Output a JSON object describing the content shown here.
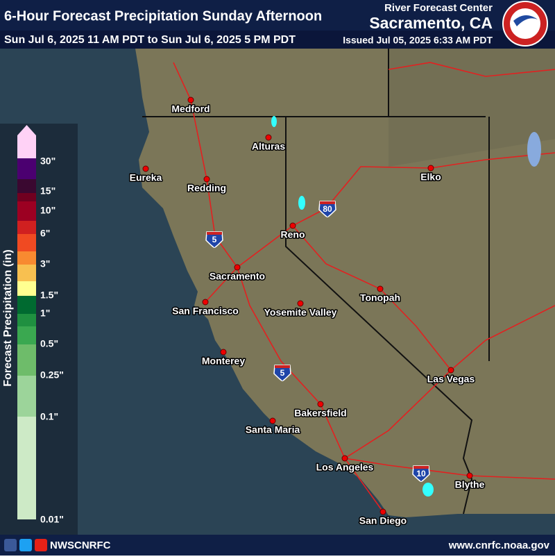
{
  "header": {
    "title": "6-Hour Forecast Precipitation Sunday Afternoon",
    "subtitle": "Sun Jul 6, 2025 11 AM PDT to Sun Jul 6, 2025 5 PM PDT",
    "agency": "River Forecast Center",
    "office": "Sacramento, CA",
    "issued": "Issued Jul 05, 2025 6:33 AM PDT"
  },
  "legend": {
    "title": "Forecast Precipitation (in)",
    "labels": [
      "30\"",
      "15\"",
      "10\"",
      "6\"",
      "3\"",
      "1.5\"",
      "1\"",
      "0.5\"",
      "0.25\"",
      "0.1\"",
      "0.01\""
    ]
  },
  "cities": [
    "Medford",
    "Eureka",
    "Redding",
    "Alturas",
    "Elko",
    "Reno",
    "Sacramento",
    "San Francisco",
    "Yosemite Valley",
    "Tonopah",
    "Monterey",
    "Las Vegas",
    "Bakersfield",
    "Santa Maria",
    "Los Angeles",
    "Blythe",
    "San Diego"
  ],
  "interstates": [
    "5",
    "80",
    "5",
    "10"
  ],
  "footer": {
    "handle": "NWSCNRFC",
    "url": "www.cnrfc.noaa.gov"
  }
}
